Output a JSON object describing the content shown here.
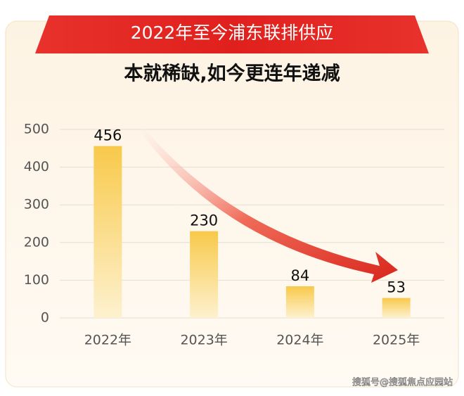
{
  "chart_data": {
    "type": "bar",
    "title": "2022年至今浦东联排供应",
    "subtitle": "本就稀缺,如今更连年递减",
    "categories": [
      "2022年",
      "2023年",
      "2024年",
      "2025年"
    ],
    "values": [
      456,
      230,
      84,
      53
    ],
    "color": "#f9cf55",
    "ylim": [
      0,
      500
    ],
    "yticks": [
      0,
      100,
      200,
      300,
      400,
      500
    ],
    "grid": true,
    "watermark": "搜狐号@搜狐焦点应园站"
  }
}
